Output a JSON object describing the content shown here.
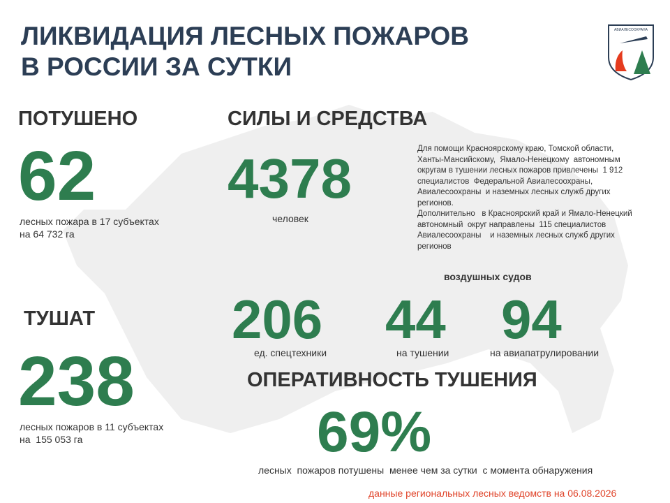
{
  "header": {
    "title_lines": [
      "ЛИКВИДАЦИЯ ЛЕСНЫХ ПОЖАРОВ",
      "В РОССИИ ЗА СУТКИ"
    ],
    "logo_text": "АВИАЛЕСООХРАНА"
  },
  "extinguished": {
    "heading": "ПОТУШЕНО",
    "number": "62",
    "caption_lines": [
      "лесных пожара в 17 субъектах",
      "на 64 732 га"
    ]
  },
  "active": {
    "heading": "ТУШАТ",
    "number": "238",
    "caption_lines": [
      "лесных пожаров в 11 субъектах",
      "на  155 053 га"
    ]
  },
  "forces": {
    "heading": "СИЛЫ И СРЕДСТВА",
    "number": "4378",
    "caption": "человек",
    "note_lines": [
      "Для помощи Красноярскому краю, Томской области,",
      "Ханты-Мансийскому,  Ямало-Ненецкому  автономным",
      "округам в тушении лесных пожаров привлечены  1 912",
      "специалистов  Федеральной Авиалесоохраны,",
      "Авиалесоохраны  и наземных лесных служб других",
      "регионов.",
      "Дополнительно   в Красноярский край и Ямало-Ненецкий",
      "автономный  округ направлены  115 специалистов",
      "Авиалесоохраны    и наземных лесных служб других",
      "регионов"
    ]
  },
  "equipment": {
    "number": "206",
    "caption": "ед. спецтехники"
  },
  "aircraft": {
    "heading": "воздушных судов",
    "items": [
      {
        "number": "44",
        "caption": "на тушении"
      },
      {
        "number": "94",
        "caption": "на авиапатрулировании"
      }
    ]
  },
  "efficiency": {
    "heading": "ОПЕРАТИВНОСТЬ ТУШЕНИЯ",
    "number": "69%",
    "caption": "лесных  пожаров потушены  менее чем за сутки  с момента обнаружения"
  },
  "footer": {
    "source": "данные региональных лесных ведомств на 06.08.2026"
  }
}
